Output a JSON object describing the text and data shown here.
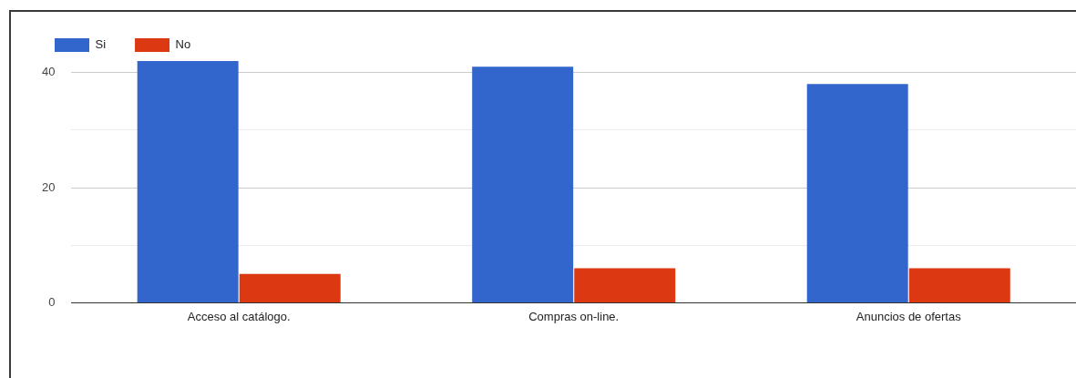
{
  "chart_data": {
    "type": "bar",
    "categories": [
      "Acceso al catálogo.",
      "Compras on-line.",
      "Anuncios de ofertas"
    ],
    "series": [
      {
        "name": "Si",
        "color": "#3366cc",
        "values": [
          42,
          41,
          38
        ]
      },
      {
        "name": "No",
        "color": "#dc3912",
        "values": [
          5,
          6,
          6
        ]
      }
    ],
    "ylim": [
      0,
      42
    ],
    "yticks": [
      0,
      {
        "value": 10,
        "label": null
      },
      20,
      {
        "value": 30,
        "label": null
      },
      40
    ],
    "grid": "y",
    "legend": "top left"
  }
}
